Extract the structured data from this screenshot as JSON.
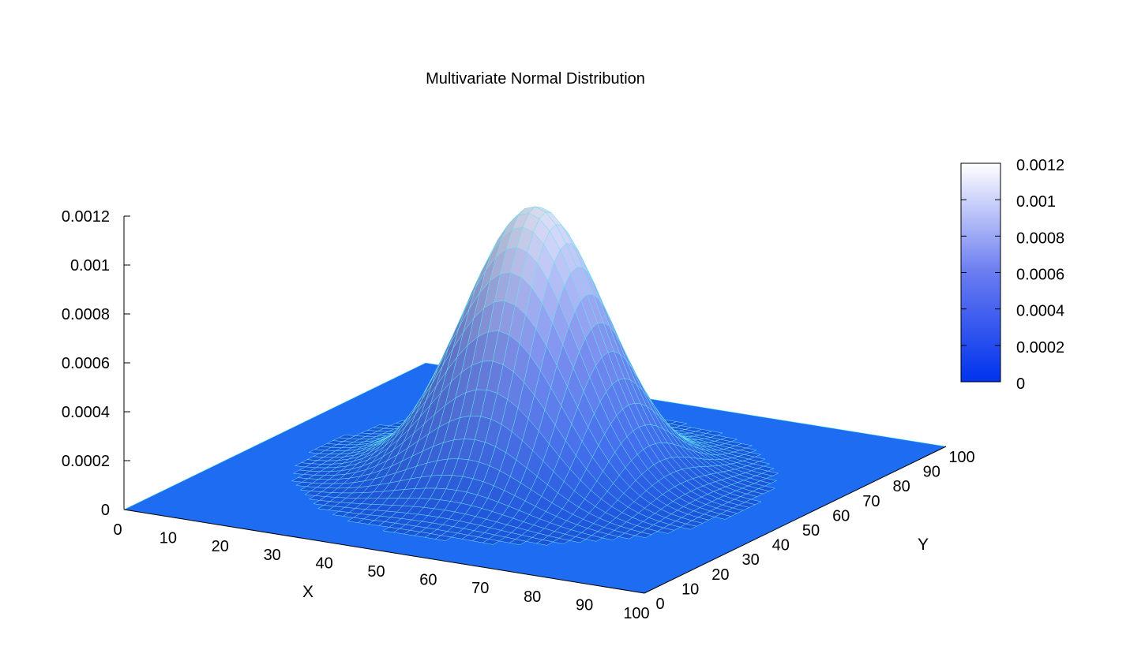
{
  "chart_data": {
    "type": "surface",
    "title": "Multivariate Normal Distribution",
    "xlabel": "X",
    "ylabel": "Y",
    "zlabel": "",
    "xlim": [
      0,
      100
    ],
    "ylim": [
      0,
      100
    ],
    "zlim": [
      0,
      0.0012
    ],
    "x_ticks": [
      "0",
      "10",
      "20",
      "30",
      "40",
      "50",
      "60",
      "70",
      "80",
      "90",
      "100"
    ],
    "y_ticks": [
      "0",
      "10",
      "20",
      "30",
      "40",
      "50",
      "60",
      "70",
      "80",
      "90",
      "100"
    ],
    "z_ticks": [
      "0",
      "0.0002",
      "0.0004",
      "0.0006",
      "0.0008",
      "0.001",
      "0.0012"
    ],
    "colorbar": {
      "ticks": [
        "0",
        "0.0002",
        "0.0004",
        "0.0006",
        "0.0008",
        "0.001",
        "0.0012"
      ],
      "range": [
        0,
        0.0012
      ],
      "low_color": "#0033ee",
      "high_color": "#ffffff"
    },
    "surface": {
      "function": "bivariate normal density",
      "peak_value": 0.00111,
      "peak_at": {
        "x": 50,
        "y": 50
      },
      "sigma_x": 12,
      "sigma_y": 12,
      "grid_step": 2
    },
    "mesh_color": "#66e6ee",
    "base_color": "#1e6cf2",
    "grid": false,
    "colorbar_placement": "right"
  }
}
